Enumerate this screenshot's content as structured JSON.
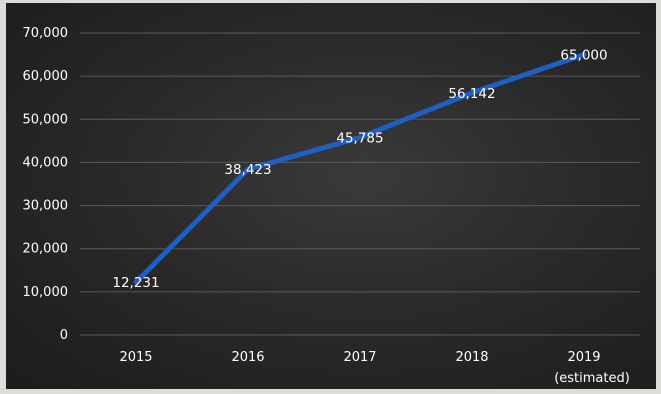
{
  "chart_data": {
    "type": "line",
    "categories": [
      "2015",
      "2016",
      "2017",
      "2018",
      "2019"
    ],
    "category_sublabels": [
      "",
      "",
      "",
      "",
      "(estimated)"
    ],
    "series": [
      {
        "values": [
          12231,
          38423,
          45785,
          56142,
          65000
        ]
      }
    ],
    "data_labels": [
      "12,231",
      "38,423",
      "45,785",
      "56,142",
      "65,000"
    ],
    "y_ticks": [
      "0",
      "10,000",
      "20,000",
      "30,000",
      "40,000",
      "50,000",
      "60,000",
      "70,000"
    ],
    "y_tick_values": [
      0,
      10000,
      20000,
      30000,
      40000,
      50000,
      60000,
      70000
    ],
    "ylim": [
      0,
      70000
    ],
    "grid": true,
    "colors": {
      "line": "#1f5fc2",
      "text": "#ffffff",
      "background": "#2a2a2a",
      "grid": "#5a5a5a"
    }
  }
}
